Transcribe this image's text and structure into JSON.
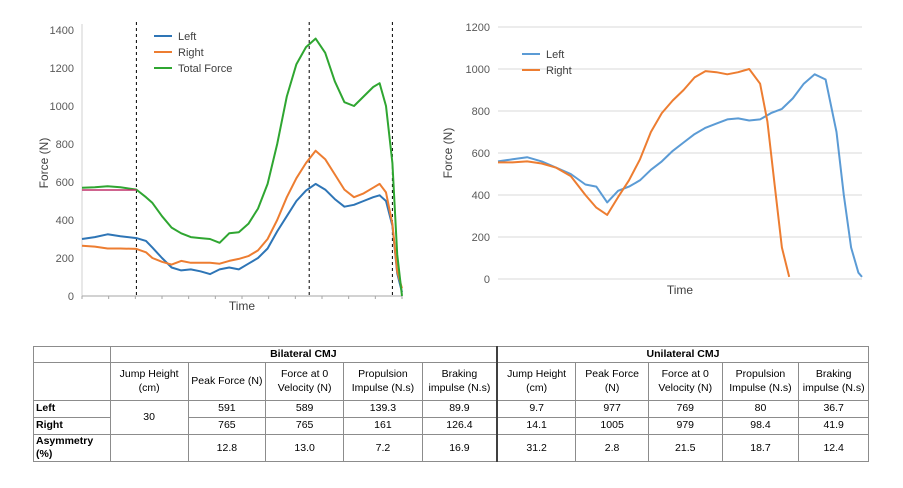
{
  "chart_data": [
    {
      "type": "line",
      "xlabel": "Time",
      "ylabel": "Force (N)",
      "ylim": [
        0,
        1400
      ],
      "yticks": [
        "0",
        "200",
        "400",
        "600",
        "800",
        "1000",
        "1200",
        "1400"
      ],
      "grid": false,
      "legend_position": "top-left",
      "legend": [
        "Left",
        "Right",
        "Total Force"
      ],
      "colors": {
        "left": "#2E75B6",
        "right": "#ED7D31",
        "total": "#2FA631",
        "baseline": "#C0306A"
      },
      "xlim": [
        0,
        1
      ],
      "vlines_x": [
        0.17,
        0.71,
        0.97
      ],
      "series": [
        {
          "name": "Left",
          "color": "#2E75B6",
          "x": [
            0,
            0.04,
            0.08,
            0.12,
            0.17,
            0.2,
            0.22,
            0.25,
            0.28,
            0.31,
            0.34,
            0.37,
            0.4,
            0.43,
            0.46,
            0.49,
            0.52,
            0.55,
            0.58,
            0.61,
            0.64,
            0.67,
            0.7,
            0.73,
            0.76,
            0.79,
            0.82,
            0.85,
            0.88,
            0.91,
            0.93,
            0.95,
            0.97,
            0.985,
            1.0
          ],
          "y": [
            300,
            310,
            325,
            315,
            305,
            290,
            255,
            200,
            150,
            135,
            140,
            130,
            115,
            140,
            150,
            140,
            170,
            200,
            250,
            340,
            420,
            500,
            555,
            590,
            560,
            510,
            470,
            480,
            500,
            520,
            530,
            500,
            370,
            120,
            20
          ]
        },
        {
          "name": "Right",
          "color": "#ED7D31",
          "x": [
            0,
            0.04,
            0.08,
            0.12,
            0.17,
            0.2,
            0.22,
            0.25,
            0.28,
            0.31,
            0.34,
            0.37,
            0.4,
            0.43,
            0.46,
            0.49,
            0.52,
            0.55,
            0.58,
            0.61,
            0.64,
            0.67,
            0.7,
            0.73,
            0.76,
            0.79,
            0.82,
            0.85,
            0.88,
            0.91,
            0.93,
            0.95,
            0.97,
            0.985,
            1.0
          ],
          "y": [
            265,
            260,
            250,
            250,
            248,
            230,
            200,
            180,
            165,
            185,
            175,
            175,
            175,
            170,
            185,
            195,
            210,
            240,
            300,
            400,
            520,
            620,
            700,
            765,
            720,
            640,
            560,
            520,
            540,
            570,
            590,
            545,
            380,
            130,
            40
          ]
        },
        {
          "name": "Total Force",
          "color": "#2FA631",
          "x": [
            0,
            0.04,
            0.08,
            0.12,
            0.17,
            0.2,
            0.22,
            0.25,
            0.28,
            0.31,
            0.34,
            0.37,
            0.4,
            0.43,
            0.46,
            0.49,
            0.52,
            0.55,
            0.58,
            0.61,
            0.64,
            0.67,
            0.7,
            0.73,
            0.76,
            0.79,
            0.82,
            0.85,
            0.88,
            0.91,
            0.93,
            0.95,
            0.97,
            0.985,
            1.0
          ],
          "y": [
            570,
            572,
            578,
            572,
            560,
            520,
            490,
            420,
            360,
            330,
            310,
            305,
            300,
            280,
            330,
            335,
            380,
            460,
            590,
            800,
            1050,
            1220,
            1310,
            1355,
            1280,
            1130,
            1020,
            1000,
            1050,
            1100,
            1120,
            1000,
            700,
            220,
            0
          ]
        },
        {
          "name": "",
          "color": "#C0306A",
          "x": [
            0,
            0.17
          ],
          "y": [
            558,
            558
          ]
        }
      ]
    },
    {
      "type": "line",
      "xlabel": "Time",
      "ylabel": "Force (N)",
      "ylim": [
        0,
        1200
      ],
      "yticks": [
        "0",
        "200",
        "400",
        "600",
        "800",
        "1000",
        "1200"
      ],
      "grid": true,
      "legend_position": "top-left",
      "legend": [
        "Left",
        "Right"
      ],
      "xlim": [
        0,
        1
      ],
      "series": [
        {
          "name": "Left",
          "color": "#5B9BD5",
          "x": [
            0,
            0.04,
            0.08,
            0.12,
            0.16,
            0.2,
            0.24,
            0.27,
            0.3,
            0.33,
            0.36,
            0.39,
            0.42,
            0.45,
            0.48,
            0.51,
            0.54,
            0.57,
            0.6,
            0.63,
            0.66,
            0.69,
            0.72,
            0.75,
            0.78,
            0.81,
            0.84,
            0.87,
            0.9,
            0.93,
            0.95,
            0.97,
            0.99,
            1.0
          ],
          "y": [
            560,
            570,
            580,
            560,
            530,
            500,
            450,
            440,
            365,
            420,
            440,
            470,
            520,
            560,
            610,
            650,
            690,
            720,
            740,
            760,
            765,
            755,
            760,
            790,
            810,
            860,
            930,
            975,
            950,
            700,
            400,
            150,
            30,
            10
          ]
        },
        {
          "name": "Right",
          "color": "#ED7D31",
          "x": [
            0,
            0.04,
            0.08,
            0.12,
            0.16,
            0.2,
            0.24,
            0.27,
            0.3,
            0.33,
            0.36,
            0.39,
            0.42,
            0.45,
            0.48,
            0.51,
            0.54,
            0.57,
            0.6,
            0.63,
            0.66,
            0.69,
            0.72,
            0.74,
            0.76,
            0.78,
            0.8
          ],
          "y": [
            555,
            555,
            560,
            550,
            530,
            490,
            400,
            340,
            305,
            390,
            470,
            570,
            700,
            790,
            850,
            900,
            960,
            990,
            985,
            975,
            985,
            1000,
            930,
            750,
            450,
            150,
            10
          ]
        }
      ]
    }
  ],
  "table": {
    "groups": [
      "Bilateral CMJ",
      "Unilateral CMJ"
    ],
    "headers": [
      "Jump Height (cm)",
      "Peak Force (N)",
      "Force at 0 Velocity (N)",
      "Propulsion Impulse (N.s)",
      "Braking impulse (N.s)",
      "Jump Height (cm)",
      "Peak Force (N)",
      "Force at 0 Velocity (N)",
      "Propulsion Impulse (N.s)",
      "Braking impulse (N.s)"
    ],
    "rows": [
      {
        "label": "Left",
        "values": [
          "30",
          "591",
          "589",
          "139.3",
          "89.9",
          "9.7",
          "977",
          "769",
          "80",
          "36.7"
        ]
      },
      {
        "label": "Right",
        "values": [
          "",
          "765",
          "765",
          "161",
          "126.4",
          "14.1",
          "1005",
          "979",
          "98.4",
          "41.9"
        ]
      },
      {
        "label": "Asymmetry (%)",
        "values": [
          "",
          "12.8",
          "13.0",
          "7.2",
          "16.9",
          "31.2",
          "2.8",
          "21.5",
          "18.7",
          "12.4"
        ]
      }
    ]
  }
}
